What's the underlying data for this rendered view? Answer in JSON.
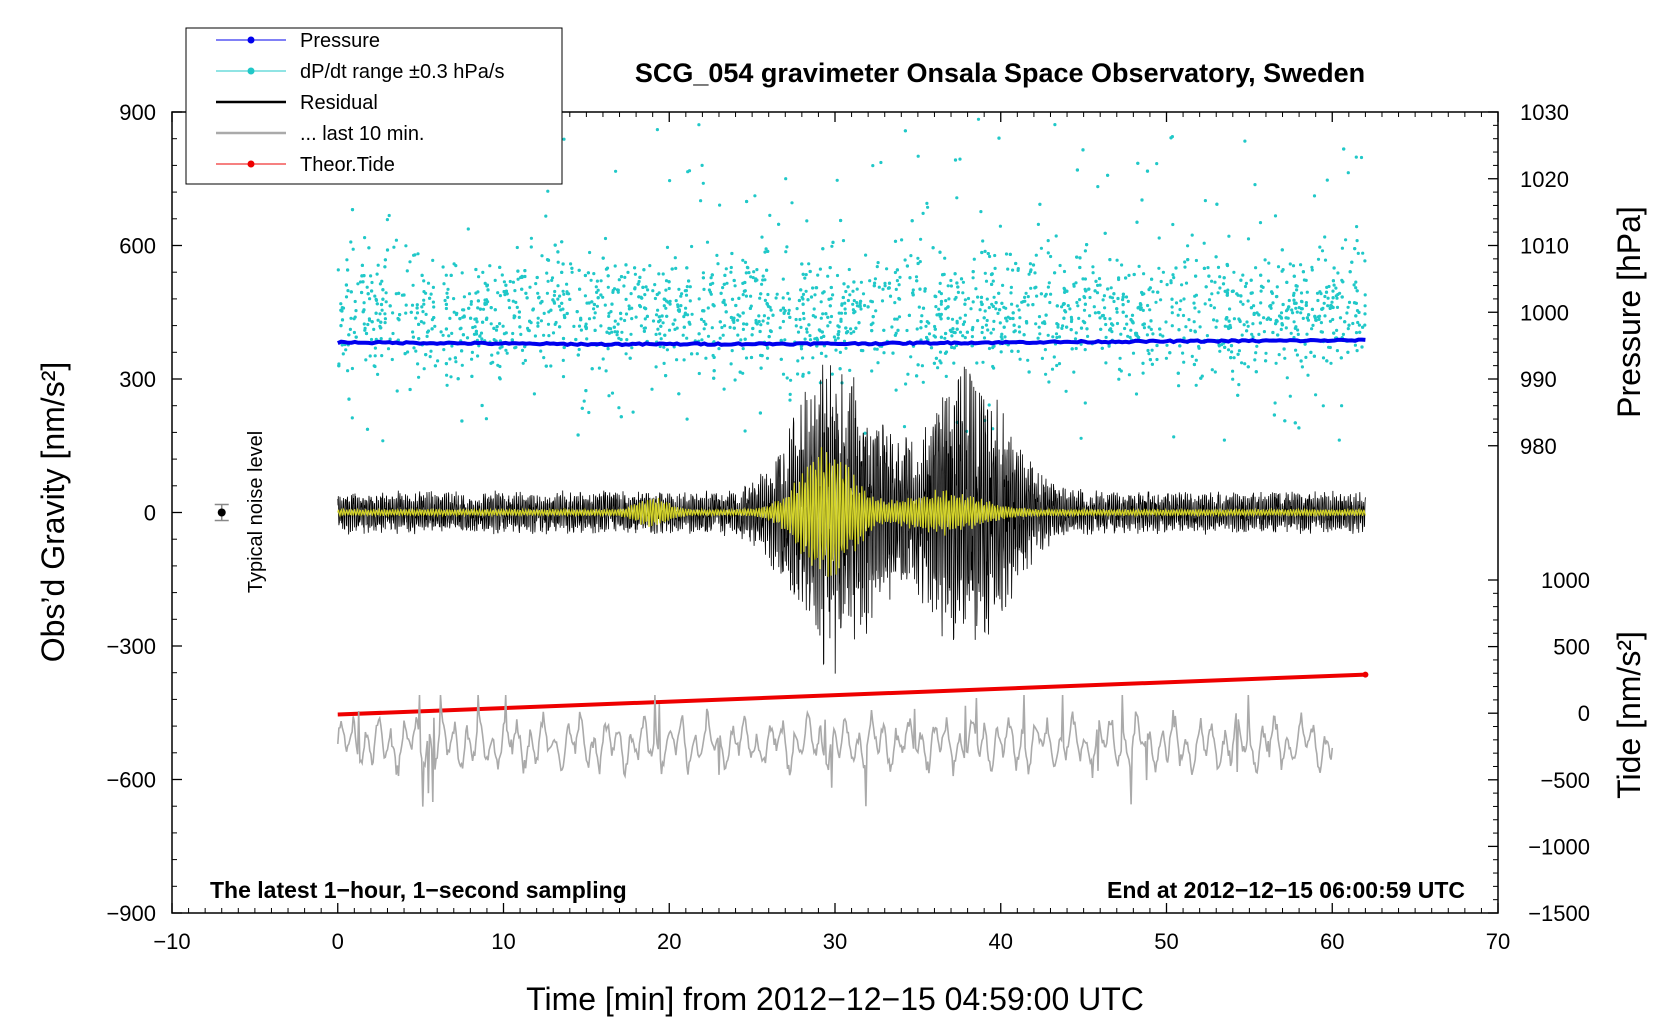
{
  "chart_data": {
    "type": "line",
    "title": "SCG_054 gravimeter Onsala Space Observatory, Sweden",
    "xlabel": "Time [min] from 2012−12−15 04:59:00 UTC",
    "ylabel_left": "Obs’d Gravity [nm/s²]",
    "ylabel_right_pressure": "Pressure [hPa]",
    "ylabel_right_tide": "Tide [nm/s²]",
    "xlim": [
      -10,
      70
    ],
    "ylim_left": [
      -900,
      900
    ],
    "pressure_axis_range": [
      980,
      1030
    ],
    "tide_axis_range": [
      -1500,
      1000
    ],
    "x_ticks": [
      "−10",
      "0",
      "10",
      "20",
      "30",
      "40",
      "50",
      "60",
      "70"
    ],
    "y_left_ticks": [
      "900",
      "600",
      "300",
      "0",
      "−300",
      "−600",
      "−900"
    ],
    "pressure_ticks": [
      "1030",
      "1020",
      "1010",
      "1000",
      "990",
      "980"
    ],
    "tide_ticks": [
      "1000",
      "500",
      "0",
      "−500",
      "−1000",
      "−1500"
    ],
    "legend": [
      {
        "label": "Pressure",
        "color": "#0000ee"
      },
      {
        "label": "dP/dt range ±0.3 hPa/s",
        "color": "#20c8c8"
      },
      {
        "label": "Residual",
        "color": "#000000"
      },
      {
        "label": "... last 10 min.",
        "color": "#aaaaaa"
      },
      {
        "label": "Theor.Tide",
        "color": "#ee0000"
      }
    ],
    "annotations": {
      "bottom_left": "The latest 1−hour, 1−second sampling",
      "bottom_right": "End at 2012−12−15 06:00:59 UTC",
      "noise_label": "Typical noise level"
    },
    "noise_marker": {
      "x": -7,
      "y": 0,
      "err": 18
    },
    "series": [
      {
        "name": "Pressure",
        "axis": "pressure",
        "x_range": [
          0,
          62
        ],
        "values": [
          995.5,
          995.2,
          995.3,
          995.6,
          995.8
        ]
      },
      {
        "name": "dP/dt range ±0.3 hPa/s",
        "axis": "left",
        "x_range": [
          0,
          62
        ],
        "center": 450,
        "spread_min": 150,
        "spread_max": 890
      },
      {
        "name": "Residual",
        "axis": "left",
        "x_range": [
          0,
          62
        ],
        "baseline_amplitude": 50,
        "burst_peaks": [
          {
            "x": 30,
            "amplitude": 330
          },
          {
            "x": 38,
            "amplitude": 300
          }
        ]
      },
      {
        "name": "Residual (smoothed)",
        "axis": "left",
        "color": "#d4d42a",
        "x_range": [
          0,
          62
        ],
        "burst_peak": {
          "x": 29.5,
          "amplitude": 150
        }
      },
      {
        "name": "... last 10 min.",
        "axis": "left",
        "x_range": [
          0,
          60
        ],
        "center": -520,
        "min": -700,
        "max": -410
      },
      {
        "name": "Theor.Tide",
        "axis": "tide",
        "x": [
          0,
          62
        ],
        "values": [
          -10,
          290
        ]
      }
    ]
  }
}
